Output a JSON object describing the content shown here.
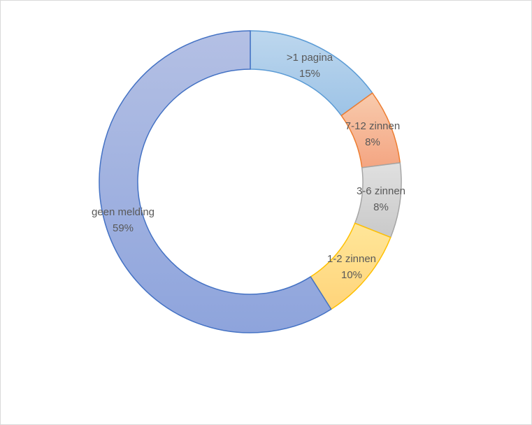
{
  "chart_data": {
    "type": "pie",
    "subtype": "doughnut",
    "title": "",
    "legend": "none",
    "slices": [
      {
        "label": ">1 pagina",
        "value": 15,
        "value_label": "15%",
        "color": "#9dc3e6",
        "color_light": "#bdd7ee",
        "stroke": "#5b9bd5"
      },
      {
        "label": "7-12 zinnen",
        "value": 8,
        "value_label": "8%",
        "color": "#f4a582",
        "color_light": "#f8cbad",
        "stroke": "#ed7d31"
      },
      {
        "label": "3-6 zinnen",
        "value": 8,
        "value_label": "8%",
        "color": "#c9c9c9",
        "color_light": "#e0e0e0",
        "stroke": "#a5a5a5"
      },
      {
        "label": "1-2 zinnen",
        "value": 10,
        "value_label": "10%",
        "color": "#ffd47a",
        "color_light": "#ffe699",
        "stroke": "#ffc000"
      },
      {
        "label": "geen melding",
        "value": 59,
        "value_label": "59%",
        "color": "#8ea4dc",
        "color_light": "#b4c0e4",
        "stroke": "#4472c4"
      }
    ]
  }
}
